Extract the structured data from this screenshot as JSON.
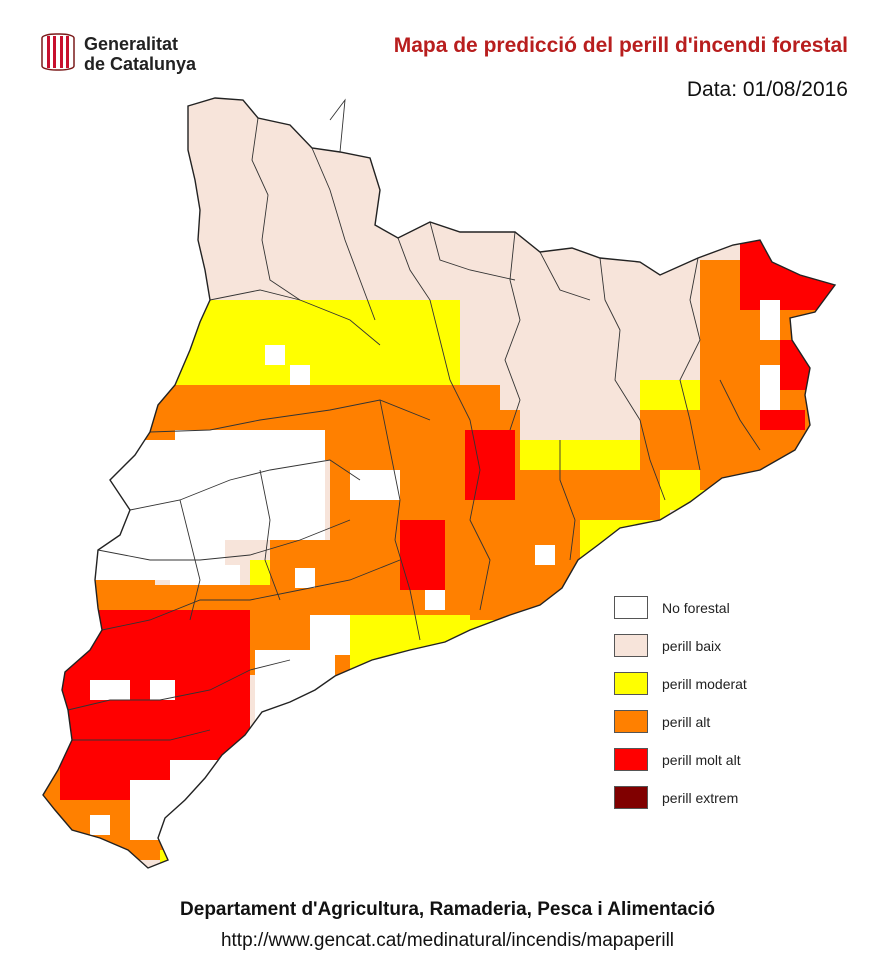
{
  "header": {
    "institution_line1": "Generalitat",
    "institution_line2": "de Catalunya",
    "title": "Mapa de predicció del perill d'incendi forestal",
    "date_label": "Data: 01/08/2016"
  },
  "legend": [
    {
      "label": "No forestal",
      "color": "#ffffff"
    },
    {
      "label": "perill baix",
      "color": "#f7e4da"
    },
    {
      "label": "perill moderat",
      "color": "#ffff00"
    },
    {
      "label": "perill alt",
      "color": "#ff8000"
    },
    {
      "label": "perill molt alt",
      "color": "#ff0000"
    },
    {
      "label": "perill extrem",
      "color": "#800000"
    }
  ],
  "footer": {
    "department": "Departament d'Agricultura, Ramaderia, Pesca i Alimentació",
    "url": "http://www.gencat.cat/medinatural/incendis/mapaperill"
  },
  "colors": {
    "title": "#b81e1e",
    "logo_stripes": "#c8102e",
    "border_lines": "#333333"
  }
}
